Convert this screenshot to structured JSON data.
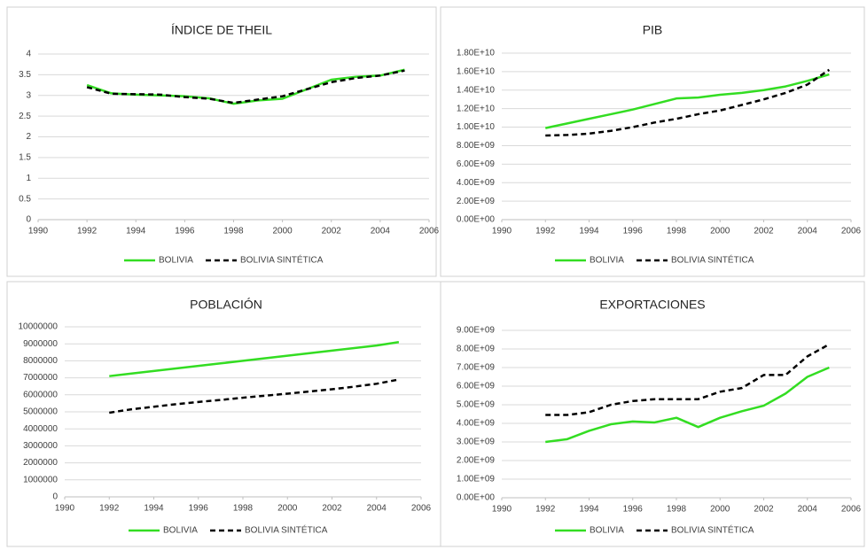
{
  "chart_data": [
    {
      "type": "line",
      "title": "ÍNDICE DE THEIL",
      "x": [
        1992,
        1993,
        1994,
        1995,
        1996,
        1997,
        1998,
        1999,
        2000,
        2001,
        2002,
        2003,
        2004,
        2005
      ],
      "xlim": [
        1990,
        2006
      ],
      "xticks": [
        1990,
        1992,
        1994,
        1996,
        1998,
        2000,
        2002,
        2004,
        2006
      ],
      "ylim": [
        0,
        4
      ],
      "yticks": [
        0,
        0.5,
        1,
        1.5,
        2,
        2.5,
        3,
        3.5,
        4
      ],
      "grid": true,
      "legend": "bottom",
      "series": [
        {
          "name": "BOLIVIA",
          "color": "#33dd22",
          "line_style": "solid",
          "values": [
            3.25,
            3.05,
            3.02,
            3.0,
            2.98,
            2.93,
            2.8,
            2.88,
            2.92,
            3.15,
            3.38,
            3.45,
            3.48,
            3.62
          ]
        },
        {
          "name": "BOLIVIA SINTÉTICA",
          "color": "#000000",
          "line_style": "dashed",
          "values": [
            3.2,
            3.04,
            3.03,
            3.02,
            2.96,
            2.92,
            2.82,
            2.9,
            2.98,
            3.15,
            3.32,
            3.42,
            3.48,
            3.6
          ]
        }
      ]
    },
    {
      "type": "line",
      "title": "PIB",
      "x": [
        1992,
        1993,
        1994,
        1995,
        1996,
        1997,
        1998,
        1999,
        2000,
        2001,
        2002,
        2003,
        2004,
        2005
      ],
      "xlim": [
        1990,
        2006
      ],
      "xticks": [
        1990,
        1992,
        1994,
        1996,
        1998,
        2000,
        2002,
        2004,
        2006
      ],
      "ylim": [
        0,
        18000000000
      ],
      "yticks": [
        {
          "value": 0,
          "label": "0.00E+00"
        },
        {
          "value": 2000000000,
          "label": "2.00E+09"
        },
        {
          "value": 4000000000,
          "label": "4.00E+09"
        },
        {
          "value": 6000000000,
          "label": "6.00E+09"
        },
        {
          "value": 8000000000,
          "label": "8.00E+09"
        },
        {
          "value": 10000000000,
          "label": "1.00E+10"
        },
        {
          "value": 12000000000,
          "label": "1.20E+10"
        },
        {
          "value": 14000000000,
          "label": "1.40E+10"
        },
        {
          "value": 16000000000,
          "label": "1.60E+10"
        },
        {
          "value": 18000000000,
          "label": "1.80E+10"
        }
      ],
      "grid": true,
      "legend": "bottom",
      "series": [
        {
          "name": "BOLIVIA",
          "color": "#33dd22",
          "line_style": "solid",
          "values": [
            9900000000,
            10400000000,
            10900000000,
            11400000000,
            11900000000,
            12500000000,
            13100000000,
            13200000000,
            13500000000,
            13700000000,
            14000000000,
            14400000000,
            15000000000,
            15700000000
          ]
        },
        {
          "name": "BOLIVIA SINTÉTICA",
          "color": "#000000",
          "line_style": "dashed",
          "values": [
            9100000000,
            9150000000,
            9300000000,
            9600000000,
            10000000000,
            10500000000,
            10900000000,
            11400000000,
            11800000000,
            12400000000,
            13000000000,
            13700000000,
            14600000000,
            16200000000
          ]
        }
      ]
    },
    {
      "type": "line",
      "title": "POBLACIÓN",
      "x": [
        1992,
        1993,
        1994,
        1995,
        1996,
        1997,
        1998,
        1999,
        2000,
        2001,
        2002,
        2003,
        2004,
        2005
      ],
      "xlim": [
        1990,
        2006
      ],
      "xticks": [
        1990,
        1992,
        1994,
        1996,
        1998,
        2000,
        2002,
        2004,
        2006
      ],
      "ylim": [
        0,
        10000000
      ],
      "yticks": [
        0,
        1000000,
        2000000,
        3000000,
        4000000,
        5000000,
        6000000,
        7000000,
        8000000,
        9000000,
        10000000
      ],
      "grid": true,
      "legend": "bottom",
      "series": [
        {
          "name": "BOLIVIA",
          "color": "#33dd22",
          "line_style": "solid",
          "values": [
            7100000,
            7250000,
            7400000,
            7550000,
            7700000,
            7850000,
            8000000,
            8150000,
            8300000,
            8450000,
            8600000,
            8750000,
            8900000,
            9100000
          ]
        },
        {
          "name": "BOLIVIA SINTÉTICA",
          "color": "#000000",
          "line_style": "dashed",
          "values": [
            4950000,
            5150000,
            5300000,
            5450000,
            5580000,
            5700000,
            5830000,
            5950000,
            6070000,
            6200000,
            6330000,
            6480000,
            6650000,
            6900000
          ]
        }
      ]
    },
    {
      "type": "line",
      "title": "EXPORTACIONES",
      "x": [
        1992,
        1993,
        1994,
        1995,
        1996,
        1997,
        1998,
        1999,
        2000,
        2001,
        2002,
        2003,
        2004,
        2005
      ],
      "xlim": [
        1990,
        2006
      ],
      "xticks": [
        1990,
        1992,
        1994,
        1996,
        1998,
        2000,
        2002,
        2004,
        2006
      ],
      "ylim": [
        0,
        9000000000
      ],
      "yticks": [
        {
          "value": 0,
          "label": "0.00E+00"
        },
        {
          "value": 1000000000,
          "label": "1.00E+09"
        },
        {
          "value": 2000000000,
          "label": "2.00E+09"
        },
        {
          "value": 3000000000,
          "label": "3.00E+09"
        },
        {
          "value": 4000000000,
          "label": "4.00E+09"
        },
        {
          "value": 5000000000,
          "label": "5.00E+09"
        },
        {
          "value": 6000000000,
          "label": "6.00E+09"
        },
        {
          "value": 7000000000,
          "label": "7.00E+09"
        },
        {
          "value": 8000000000,
          "label": "8.00E+09"
        },
        {
          "value": 9000000000,
          "label": "9.00E+09"
        }
      ],
      "grid": true,
      "legend": "bottom",
      "series": [
        {
          "name": "BOLIVIA",
          "color": "#33dd22",
          "line_style": "solid",
          "values": [
            3000000000,
            3150000000,
            3600000000,
            3950000000,
            4100000000,
            4050000000,
            4300000000,
            3800000000,
            4300000000,
            4650000000,
            4950000000,
            5600000000,
            6500000000,
            7000000000
          ]
        },
        {
          "name": "BOLIVIA SINTÉTICA",
          "color": "#000000",
          "line_style": "dashed",
          "values": [
            4450000000,
            4450000000,
            4600000000,
            5000000000,
            5200000000,
            5300000000,
            5300000000,
            5300000000,
            5700000000,
            5900000000,
            6600000000,
            6600000000,
            7600000000,
            8250000000
          ]
        }
      ]
    }
  ]
}
